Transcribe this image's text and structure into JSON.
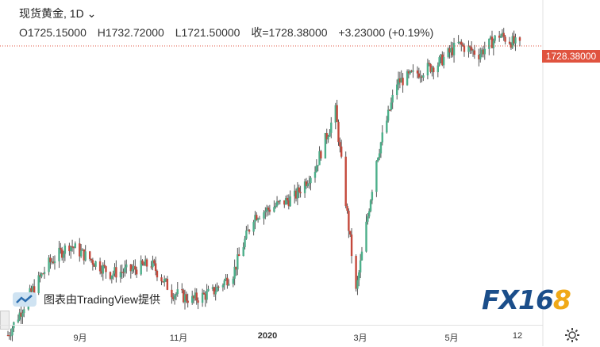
{
  "header": {
    "symbol": "现货黄金",
    "interval": "1D",
    "open": "O1725.15000",
    "high": "H1732.72000",
    "low": "L1721.50000",
    "close": "收=1728.38000",
    "change": "+3.23000 (+0.19%)"
  },
  "last_price_label": "1728.38000",
  "attribution": "图表由TradingView提供",
  "watermark": {
    "main": "FX16",
    "accent": "8"
  },
  "colors": {
    "up": "#4caf8a",
    "down": "#c4483b",
    "last_price": "#e0533f",
    "wick": "#555555"
  },
  "chart_data": {
    "type": "line",
    "style": "candlestick",
    "title": "",
    "xlabel": "",
    "ylabel": "",
    "x_ticks": [
      "9月",
      "11月",
      "2020",
      "3月",
      "5月",
      "12"
    ],
    "grid": false,
    "last_price": 1728.38,
    "ylim": [
      1440,
      1760
    ],
    "series": [
      {
        "x": [
          "2019-07-22",
          "2019-08-05",
          "2019-08-19",
          "2019-09-02",
          "2019-09-16",
          "2019-09-30",
          "2019-10-14",
          "2019-10-28",
          "2019-11-11",
          "2019-11-25",
          "2019-12-09",
          "2019-12-23",
          "2020-01-06",
          "2020-01-20",
          "2020-02-03",
          "2020-02-17",
          "2020-03-02",
          "2020-03-16",
          "2020-03-30",
          "2020-04-13",
          "2020-04-27",
          "2020-05-11",
          "2020-05-25",
          "2020-06-08",
          "2020-06-22",
          "2020-07-06"
        ],
        "values": [
          1425,
          1465,
          1500,
          1520,
          1505,
          1490,
          1493,
          1500,
          1470,
          1462,
          1470,
          1490,
          1550,
          1560,
          1570,
          1600,
          1660,
          1470,
          1610,
          1690,
          1700,
          1710,
          1730,
          1720,
          1740,
          1728
        ]
      }
    ]
  }
}
